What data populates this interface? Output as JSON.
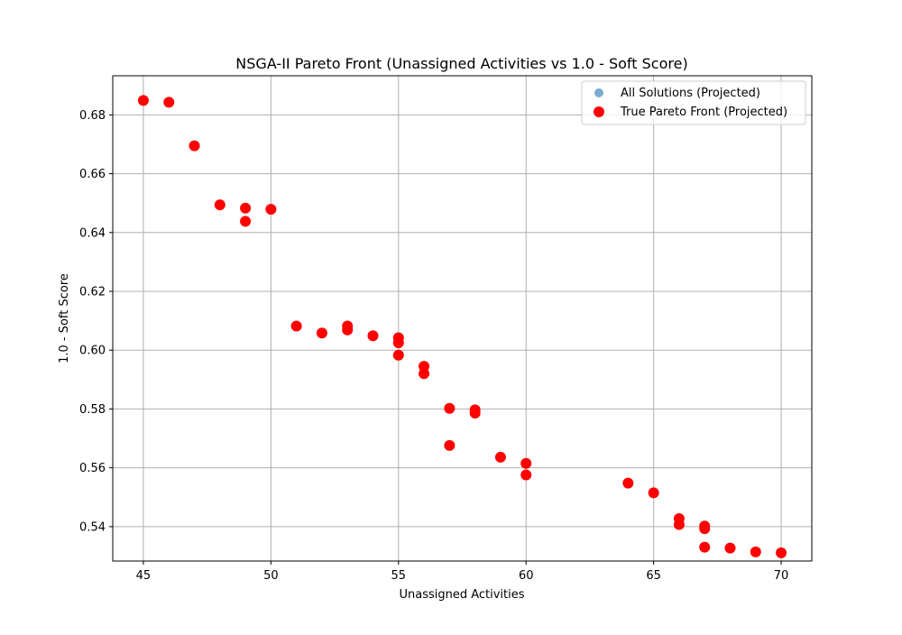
{
  "chart_data": {
    "type": "scatter",
    "title": "NSGA-II Pareto Front (Unassigned Activities vs 1.0 - Soft Score)",
    "xlabel": "Unassigned Activities",
    "ylabel": "1.0 - Soft Score",
    "xlim": [
      43.8,
      71.2
    ],
    "ylim": [
      0.5283,
      0.6933
    ],
    "xticks": [
      45,
      50,
      55,
      60,
      65,
      70
    ],
    "yticks": [
      0.54,
      0.56,
      0.58,
      0.6,
      0.62,
      0.64,
      0.66,
      0.68
    ],
    "xtick_labels": [
      "45",
      "50",
      "55",
      "60",
      "65",
      "70"
    ],
    "ytick_labels": [
      "0.54",
      "0.56",
      "0.58",
      "0.60",
      "0.62",
      "0.64",
      "0.66",
      "0.68"
    ],
    "grid": true,
    "legend_position": "top-right",
    "series": [
      {
        "name": "All Solutions (Projected)",
        "color": "#1f77b4",
        "marker_alpha": 0.6,
        "points": [
          [
            45,
            0.6849
          ],
          [
            46,
            0.6843
          ],
          [
            47,
            0.6695
          ],
          [
            48,
            0.6494
          ],
          [
            49,
            0.6483
          ],
          [
            49,
            0.6438
          ],
          [
            50,
            0.6479
          ],
          [
            51,
            0.6082
          ],
          [
            52,
            0.6058
          ],
          [
            53,
            0.6082
          ],
          [
            53,
            0.6069
          ],
          [
            54,
            0.6049
          ],
          [
            55,
            0.6042
          ],
          [
            55,
            0.6025
          ],
          [
            55,
            0.5983
          ],
          [
            56,
            0.5945
          ],
          [
            56,
            0.592
          ],
          [
            57,
            0.5802
          ],
          [
            57,
            0.5676
          ],
          [
            58,
            0.5797
          ],
          [
            58,
            0.5786
          ],
          [
            59,
            0.5636
          ],
          [
            60,
            0.5615
          ],
          [
            60,
            0.5576
          ],
          [
            64,
            0.5548
          ],
          [
            65,
            0.5515
          ],
          [
            66,
            0.5427
          ],
          [
            66,
            0.5407
          ],
          [
            67,
            0.5402
          ],
          [
            67,
            0.5393
          ],
          [
            67,
            0.533
          ],
          [
            68,
            0.5327
          ],
          [
            69,
            0.5314
          ],
          [
            70,
            0.5311
          ]
        ]
      },
      {
        "name": "True Pareto Front (Projected)",
        "color": "#ff0000",
        "marker_alpha": 1.0,
        "points": [
          [
            45,
            0.6849
          ],
          [
            46,
            0.6843
          ],
          [
            47,
            0.6695
          ],
          [
            48,
            0.6494
          ],
          [
            49,
            0.6483
          ],
          [
            49,
            0.6438
          ],
          [
            50,
            0.6479
          ],
          [
            51,
            0.6082
          ],
          [
            52,
            0.6058
          ],
          [
            53,
            0.6082
          ],
          [
            53,
            0.6069
          ],
          [
            54,
            0.6049
          ],
          [
            55,
            0.6042
          ],
          [
            55,
            0.6025
          ],
          [
            55,
            0.5983
          ],
          [
            56,
            0.5945
          ],
          [
            56,
            0.592
          ],
          [
            57,
            0.5802
          ],
          [
            57,
            0.5676
          ],
          [
            58,
            0.5797
          ],
          [
            58,
            0.5786
          ],
          [
            59,
            0.5636
          ],
          [
            60,
            0.5615
          ],
          [
            60,
            0.5576
          ],
          [
            64,
            0.5548
          ],
          [
            65,
            0.5515
          ],
          [
            66,
            0.5427
          ],
          [
            66,
            0.5407
          ],
          [
            67,
            0.5402
          ],
          [
            67,
            0.5393
          ],
          [
            67,
            0.533
          ],
          [
            68,
            0.5327
          ],
          [
            69,
            0.5314
          ],
          [
            70,
            0.5311
          ]
        ]
      }
    ]
  }
}
